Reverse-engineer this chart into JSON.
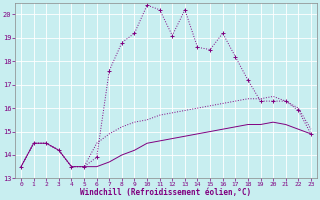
{
  "xlabel": "Windchill (Refroidissement éolien,°C)",
  "background_color": "#c8eef0",
  "grid_color": "#b0d8dc",
  "line_color": "#800080",
  "xlim": [
    -0.5,
    23.5
  ],
  "ylim": [
    13,
    20.5
  ],
  "yticks": [
    13,
    14,
    15,
    16,
    17,
    18,
    19,
    20
  ],
  "xticks": [
    0,
    1,
    2,
    3,
    4,
    5,
    6,
    7,
    8,
    9,
    10,
    11,
    12,
    13,
    14,
    15,
    16,
    17,
    18,
    19,
    20,
    21,
    22,
    23
  ],
  "hours": [
    0,
    1,
    2,
    3,
    4,
    5,
    6,
    7,
    8,
    9,
    10,
    11,
    12,
    13,
    14,
    15,
    16,
    17,
    18,
    19,
    20,
    21,
    22,
    23
  ],
  "line1": [
    13.5,
    14.5,
    14.5,
    14.2,
    13.5,
    13.5,
    13.9,
    17.6,
    18.8,
    19.2,
    20.4,
    20.2,
    19.1,
    20.2,
    18.6,
    18.5,
    19.2,
    18.2,
    17.2,
    16.3,
    16.3,
    16.3,
    15.9,
    14.9
  ],
  "line2": [
    13.5,
    14.5,
    14.5,
    14.2,
    13.5,
    13.5,
    14.5,
    14.9,
    15.2,
    15.4,
    15.5,
    15.7,
    15.8,
    15.9,
    16.0,
    16.1,
    16.2,
    16.3,
    16.4,
    16.4,
    16.5,
    16.3,
    16.0,
    15.1
  ],
  "line3": [
    13.5,
    14.5,
    14.5,
    14.2,
    13.5,
    13.5,
    13.5,
    13.7,
    14.0,
    14.2,
    14.5,
    14.6,
    14.7,
    14.8,
    14.9,
    15.0,
    15.1,
    15.2,
    15.3,
    15.3,
    15.4,
    15.3,
    15.1,
    14.9
  ]
}
